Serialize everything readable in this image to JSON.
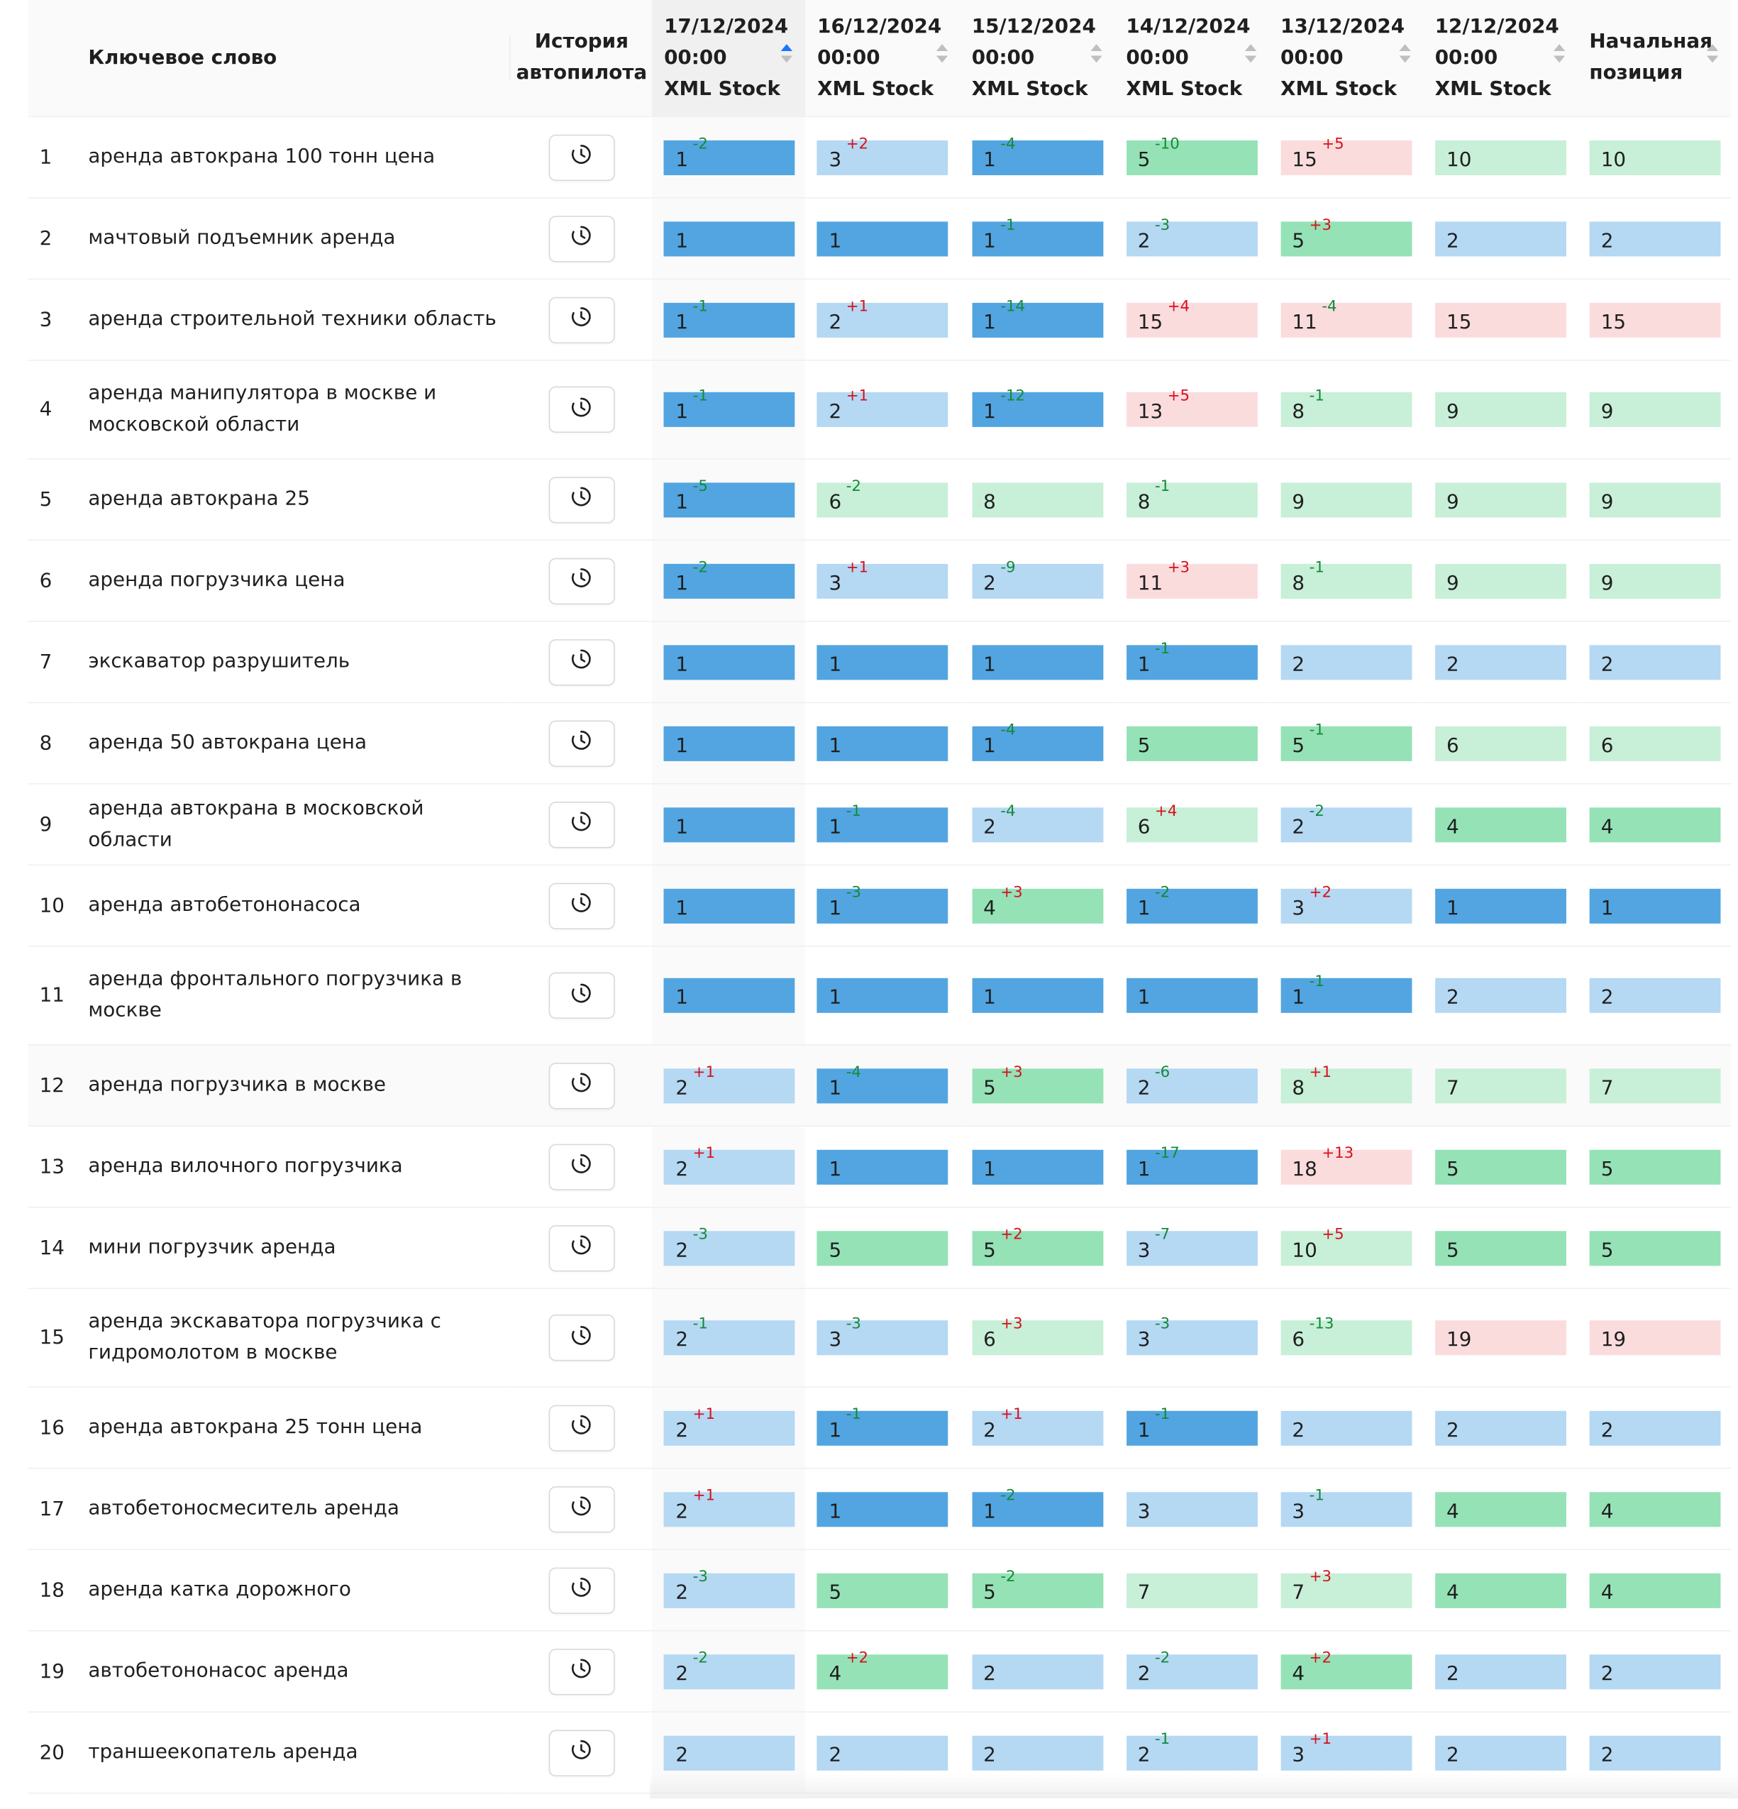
{
  "headers": {
    "keyword": "Ключевое слово",
    "history_line1": "История",
    "history_line2": "автопилота",
    "dates": [
      {
        "date": "17/12/2024",
        "time": "00:00",
        "source": "XML Stock",
        "sort": "asc"
      },
      {
        "date": "16/12/2024",
        "time": "00:00",
        "source": "XML Stock",
        "sort": "none"
      },
      {
        "date": "15/12/2024",
        "time": "00:00",
        "source": "XML Stock",
        "sort": "none"
      },
      {
        "date": "14/12/2024",
        "time": "00:00",
        "source": "XML Stock",
        "sort": "none"
      },
      {
        "date": "13/12/2024",
        "time": "00:00",
        "source": "XML Stock",
        "sort": "none"
      },
      {
        "date": "12/12/2024",
        "time": "00:00",
        "source": "XML Stock",
        "sort": "none"
      }
    ],
    "initial_line1": "Начальная",
    "initial_line2": "позиция"
  },
  "colors": {
    "level_1": "#52a5e0",
    "level_2_3": "#b5d8f3",
    "level_4_5": "#95e2b6",
    "level_6_10": "#c8efd7",
    "level_11_plus": "#fbdcdd",
    "delta_improve": "#138a36",
    "delta_worse": "#d4111e",
    "sort_active": "#1677ff"
  },
  "rows": [
    {
      "n": "1",
      "kw": "аренда автокрана 100 тонн цена",
      "cells": [
        [
          "1",
          "-2"
        ],
        [
          "3",
          "+2"
        ],
        [
          "1",
          "-4"
        ],
        [
          "5",
          "-10"
        ],
        [
          "15",
          "+5"
        ],
        [
          "10",
          ""
        ],
        [
          "10",
          ""
        ]
      ]
    },
    {
      "n": "2",
      "kw": "мачтовый подъемник аренда",
      "cells": [
        [
          "1",
          ""
        ],
        [
          "1",
          ""
        ],
        [
          "1",
          "-1"
        ],
        [
          "2",
          "-3"
        ],
        [
          "5",
          "+3"
        ],
        [
          "2",
          ""
        ],
        [
          "2",
          ""
        ]
      ]
    },
    {
      "n": "3",
      "kw": "аренда строительной техники область",
      "cells": [
        [
          "1",
          "-1"
        ],
        [
          "2",
          "+1"
        ],
        [
          "1",
          "-14"
        ],
        [
          "15",
          "+4"
        ],
        [
          "11",
          "-4"
        ],
        [
          "15",
          ""
        ],
        [
          "15",
          ""
        ]
      ]
    },
    {
      "n": "4",
      "kw": "аренда манипулятора в москве и московской области",
      "tall": true,
      "cells": [
        [
          "1",
          "-1"
        ],
        [
          "2",
          "+1"
        ],
        [
          "1",
          "-12"
        ],
        [
          "13",
          "+5"
        ],
        [
          "8",
          "-1"
        ],
        [
          "9",
          ""
        ],
        [
          "9",
          ""
        ]
      ]
    },
    {
      "n": "5",
      "kw": "аренда автокрана 25",
      "cells": [
        [
          "1",
          "-5"
        ],
        [
          "6",
          "-2"
        ],
        [
          "8",
          ""
        ],
        [
          "8",
          "-1"
        ],
        [
          "9",
          ""
        ],
        [
          "9",
          ""
        ],
        [
          "9",
          ""
        ]
      ]
    },
    {
      "n": "6",
      "kw": "аренда погрузчика цена",
      "cells": [
        [
          "1",
          "-2"
        ],
        [
          "3",
          "+1"
        ],
        [
          "2",
          "-9"
        ],
        [
          "11",
          "+3"
        ],
        [
          "8",
          "-1"
        ],
        [
          "9",
          ""
        ],
        [
          "9",
          ""
        ]
      ]
    },
    {
      "n": "7",
      "kw": "экскаватор разрушитель",
      "cells": [
        [
          "1",
          ""
        ],
        [
          "1",
          ""
        ],
        [
          "1",
          ""
        ],
        [
          "1",
          "-1"
        ],
        [
          "2",
          ""
        ],
        [
          "2",
          ""
        ],
        [
          "2",
          ""
        ]
      ]
    },
    {
      "n": "8",
      "kw": "аренда 50 автокрана цена",
      "cells": [
        [
          "1",
          ""
        ],
        [
          "1",
          ""
        ],
        [
          "1",
          "-4"
        ],
        [
          "5",
          ""
        ],
        [
          "5",
          "-1"
        ],
        [
          "6",
          ""
        ],
        [
          "6",
          ""
        ]
      ]
    },
    {
      "n": "9",
      "kw": "аренда автокрана в московской области",
      "cells": [
        [
          "1",
          ""
        ],
        [
          "1",
          "-1"
        ],
        [
          "2",
          "-4"
        ],
        [
          "6",
          "+4"
        ],
        [
          "2",
          "-2"
        ],
        [
          "4",
          ""
        ],
        [
          "4",
          ""
        ]
      ]
    },
    {
      "n": "10",
      "kw": "аренда автобетононасоса",
      "cells": [
        [
          "1",
          ""
        ],
        [
          "1",
          "-3"
        ],
        [
          "4",
          "+3"
        ],
        [
          "1",
          "-2"
        ],
        [
          "3",
          "+2"
        ],
        [
          "1",
          ""
        ],
        [
          "1",
          ""
        ]
      ]
    },
    {
      "n": "11",
      "kw": "аренда фронтального погрузчика в москве",
      "tall": true,
      "cells": [
        [
          "1",
          ""
        ],
        [
          "1",
          ""
        ],
        [
          "1",
          ""
        ],
        [
          "1",
          ""
        ],
        [
          "1",
          "-1"
        ],
        [
          "2",
          ""
        ],
        [
          "2",
          ""
        ]
      ]
    },
    {
      "n": "12",
      "kw": "аренда погрузчика в москве",
      "hover": true,
      "cells": [
        [
          "2",
          "+1"
        ],
        [
          "1",
          "-4"
        ],
        [
          "5",
          "+3"
        ],
        [
          "2",
          "-6"
        ],
        [
          "8",
          "+1"
        ],
        [
          "7",
          ""
        ],
        [
          "7",
          ""
        ]
      ]
    },
    {
      "n": "13",
      "kw": "аренда вилочного погрузчика",
      "cells": [
        [
          "2",
          "+1"
        ],
        [
          "1",
          ""
        ],
        [
          "1",
          ""
        ],
        [
          "1",
          "-17"
        ],
        [
          "18",
          "+13"
        ],
        [
          "5",
          ""
        ],
        [
          "5",
          ""
        ]
      ]
    },
    {
      "n": "14",
      "kw": "мини погрузчик аренда",
      "cells": [
        [
          "2",
          "-3"
        ],
        [
          "5",
          ""
        ],
        [
          "5",
          "+2"
        ],
        [
          "3",
          "-7"
        ],
        [
          "10",
          "+5"
        ],
        [
          "5",
          ""
        ],
        [
          "5",
          ""
        ]
      ]
    },
    {
      "n": "15",
      "kw": "аренда экскаватора погрузчика с гидромолотом в москве",
      "tall": true,
      "cells": [
        [
          "2",
          "-1"
        ],
        [
          "3",
          "-3"
        ],
        [
          "6",
          "+3"
        ],
        [
          "3",
          "-3"
        ],
        [
          "6",
          "-13"
        ],
        [
          "19",
          ""
        ],
        [
          "19",
          ""
        ]
      ]
    },
    {
      "n": "16",
      "kw": "аренда автокрана 25 тонн цена",
      "cells": [
        [
          "2",
          "+1"
        ],
        [
          "1",
          "-1"
        ],
        [
          "2",
          "+1"
        ],
        [
          "1",
          "-1"
        ],
        [
          "2",
          ""
        ],
        [
          "2",
          ""
        ],
        [
          "2",
          ""
        ]
      ]
    },
    {
      "n": "17",
      "kw": "автобетоносмеситель аренда",
      "cells": [
        [
          "2",
          "+1"
        ],
        [
          "1",
          ""
        ],
        [
          "1",
          "-2"
        ],
        [
          "3",
          ""
        ],
        [
          "3",
          "-1"
        ],
        [
          "4",
          ""
        ],
        [
          "4",
          ""
        ]
      ]
    },
    {
      "n": "18",
      "kw": "аренда катка дорожного",
      "cells": [
        [
          "2",
          "-3"
        ],
        [
          "5",
          ""
        ],
        [
          "5",
          "-2"
        ],
        [
          "7",
          ""
        ],
        [
          "7",
          "+3"
        ],
        [
          "4",
          ""
        ],
        [
          "4",
          ""
        ]
      ]
    },
    {
      "n": "19",
      "kw": "автобетононасос аренда",
      "cells": [
        [
          "2",
          "-2"
        ],
        [
          "4",
          "+2"
        ],
        [
          "2",
          ""
        ],
        [
          "2",
          "-2"
        ],
        [
          "4",
          "+2"
        ],
        [
          "2",
          ""
        ],
        [
          "2",
          ""
        ]
      ]
    },
    {
      "n": "20",
      "kw": "траншеекопатель аренда",
      "cells": [
        [
          "2",
          ""
        ],
        [
          "2",
          ""
        ],
        [
          "2",
          ""
        ],
        [
          "2",
          "-1"
        ],
        [
          "3",
          "+1"
        ],
        [
          "2",
          ""
        ],
        [
          "2",
          ""
        ]
      ]
    }
  ]
}
